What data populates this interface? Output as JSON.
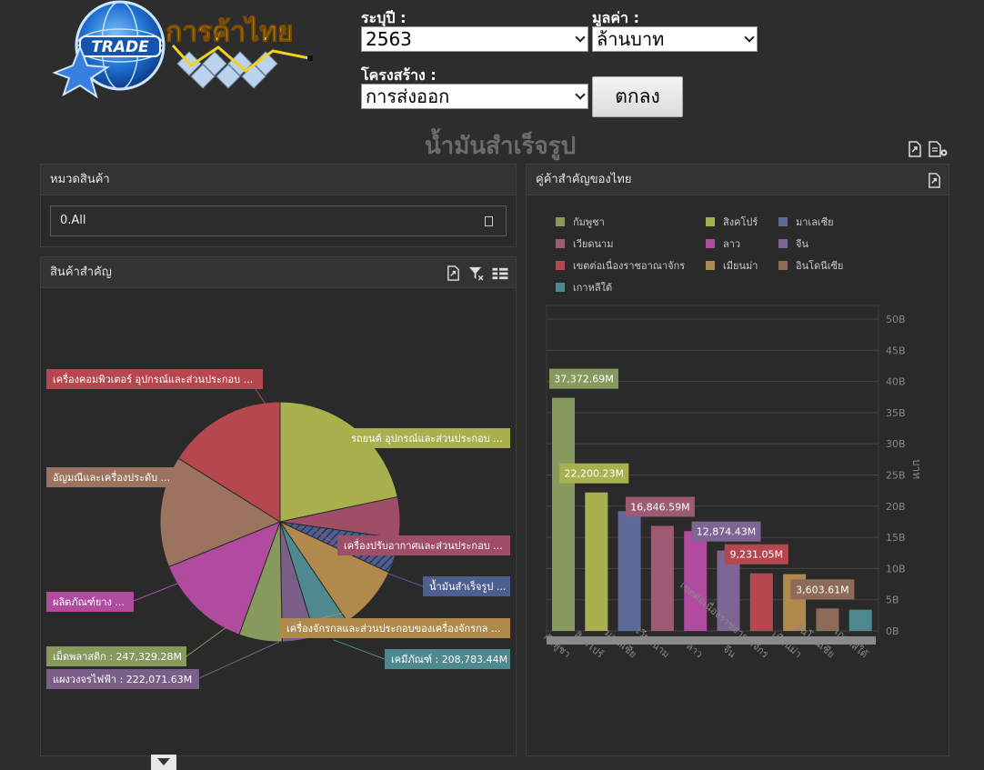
{
  "header": {
    "logo_badge": "TRADE",
    "logo_text": "การค้าไทย",
    "year_label": "ระบุปี :",
    "year_value": "2563",
    "value_label": "มูลค่า :",
    "value_value": "ล้านบาท",
    "structure_label": "โครงสร้าง :",
    "structure_value": "การส่งออก",
    "ok_label": "ตกลง"
  },
  "page_title": "น้ำมันสำเร็จรูป",
  "category_panel": {
    "title": "หมวดสินค้า",
    "value": "0.All"
  },
  "products_panel": {
    "title": "สินค้าสำคัญ"
  },
  "partners_panel": {
    "title": "คู่ค้าสำคัญของไทย"
  },
  "colors": {
    "background": "#2d2d2d",
    "panel": "#2a2a2a",
    "title_gray": "#6c6c6c"
  },
  "chart_data": [
    {
      "type": "pie",
      "title": "",
      "slices": [
        {
          "label": "รถยนต์ อุปกรณ์และส่วนประกอบ ...",
          "value": null,
          "color": "#a9b14e"
        },
        {
          "label": "เครื่องปรับอากาศและส่วนประกอบ ...",
          "value": null,
          "color": "#a04e68"
        },
        {
          "label": "น้ำมันสำเร็จรูป ...",
          "value": null,
          "color": "#4d5f8e"
        },
        {
          "label": "เครื่องจักรกลและส่วนประกอบของเครื่องจักรกล ...",
          "value": null,
          "color": "#b08a4c"
        },
        {
          "label": "เคมีภัณฑ์ : 208,783.44M",
          "value": 208783.44,
          "color": "#4f8990"
        },
        {
          "label": "แผงวงจรไฟฟ้า : 222,071.63M",
          "value": 222071.63,
          "color": "#7a5f88"
        },
        {
          "label": "เม็ดพลาสติก : 247,329.28M",
          "value": 247329.28,
          "color": "#879a5e"
        },
        {
          "label": "ผลิตภัณฑ์ยาง ...",
          "value": null,
          "color": "#b04ba0"
        },
        {
          "label": "อัญมณีและเครื่องประดับ ...",
          "value": null,
          "color": "#9b735f"
        },
        {
          "label": "เครื่องคอมพิวเตอร์ อุปกรณ์และส่วนประกอบ ...",
          "value": null,
          "color": "#b5474f"
        }
      ]
    },
    {
      "type": "bar",
      "title": "",
      "ylabel": "บาท",
      "ylim": [
        0,
        50000000000
      ],
      "yticks": [
        "0B",
        "5B",
        "10B",
        "15B",
        "20B",
        "25B",
        "30B",
        "35B",
        "40B",
        "45B",
        "50B"
      ],
      "categories": [
        "กัมพูชา",
        "สิงคโปร์",
        "มาเลเซีย",
        "เวียดนาม",
        "ลาว",
        "จีน",
        "เขตต่อเนื่องราชอาณาจักร",
        "เมียนม่า",
        "อินโดนีเซีย",
        "เกาหลีใต้"
      ],
      "values": [
        37372690000,
        22200230000,
        19200000000,
        16846590000,
        16000000000,
        12874430000,
        9231050000,
        9100000000,
        3603610000,
        3400000000
      ],
      "value_labels": [
        "37,372.69M",
        "22,200.23M",
        "",
        "16,846.59M",
        "",
        "12,874.43M",
        "9,231.05M",
        "",
        "3,603.61M",
        ""
      ],
      "colors": [
        "#879a5e",
        "#a9b14e",
        "#5e6b98",
        "#9c5b72",
        "#b04ba0",
        "#7e6694",
        "#b5474f",
        "#b08a4c",
        "#8e6a58",
        "#4f8990"
      ],
      "legend": [
        {
          "label": "กัมพูชา",
          "color": "#879a5e"
        },
        {
          "label": "สิงคโปร์",
          "color": "#a9b14e"
        },
        {
          "label": "มาเลเซีย",
          "color": "#5e6b98"
        },
        {
          "label": "เวียดนาม",
          "color": "#9c5b72"
        },
        {
          "label": "ลาว",
          "color": "#b04ba0"
        },
        {
          "label": "จีน",
          "color": "#7e6694"
        },
        {
          "label": "เขตต่อเนื่องราชอาณาจักร",
          "color": "#b5474f"
        },
        {
          "label": "เมียนม่า",
          "color": "#b08a4c"
        },
        {
          "label": "อินโดนีเซีย",
          "color": "#8e6a58"
        },
        {
          "label": "เกาหลีใต้",
          "color": "#4f8990"
        }
      ]
    }
  ]
}
